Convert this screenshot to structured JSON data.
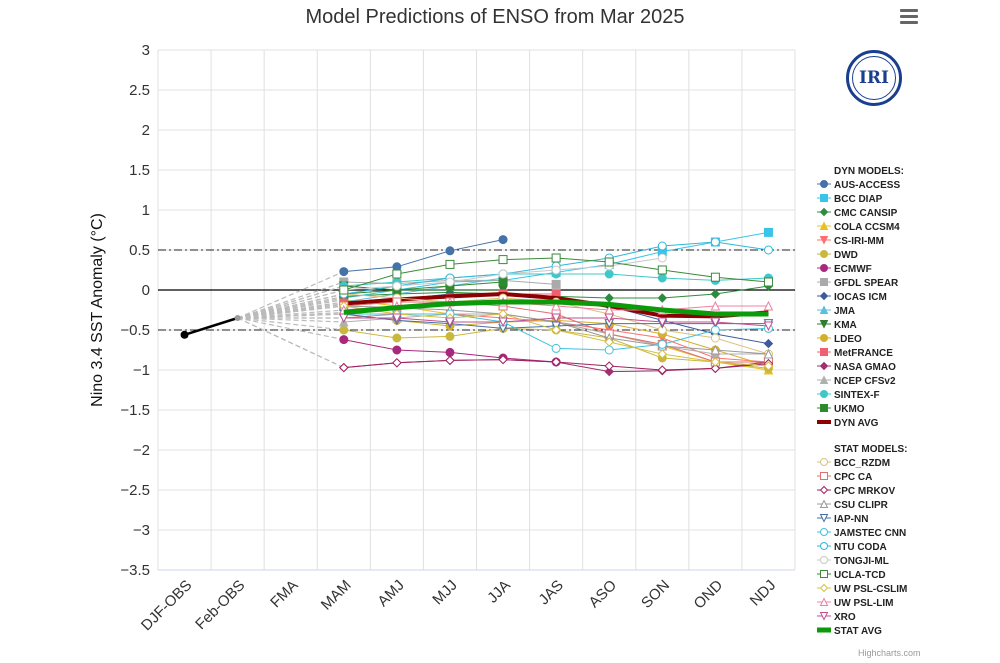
{
  "chart_data": {
    "type": "line",
    "title": "Model Predictions of ENSO from Mar 2025",
    "ylabel": "Nino 3.4 SST Anomaly (°C)",
    "xlabel": "",
    "ylim": [
      -3.5,
      3
    ],
    "yticks": [
      3,
      2.5,
      2,
      1.5,
      1,
      0.5,
      0,
      -0.5,
      -1,
      -1.5,
      -2,
      -2.5,
      -3,
      -3.5
    ],
    "ytick_labels": [
      "3",
      "2.5",
      "2",
      "1.5",
      "1",
      "0.5",
      "0",
      "−0.5",
      "−1",
      "−1.5",
      "−2",
      "−2.5",
      "−3",
      "−3.5"
    ],
    "categories": [
      "DJF-OBS",
      "Feb-OBS",
      "FMA",
      "MAM",
      "AMJ",
      "MJJ",
      "JJA",
      "JAS",
      "ASO",
      "SON",
      "OND",
      "NDJ"
    ],
    "observed": [
      -0.56,
      -0.35
    ],
    "reference_lines": [
      0.5,
      -0.5
    ],
    "legend_headers": [
      "DYN MODELS:",
      "STAT MODELS:"
    ],
    "series": [
      {
        "name": "AUS-ACCESS",
        "group": "dyn",
        "color": "#4572a7",
        "marker": "circle",
        "fill": true,
        "values": [
          null,
          null,
          null,
          0.23,
          0.29,
          0.49,
          0.63,
          null,
          null,
          null,
          null,
          null
        ]
      },
      {
        "name": "BCC DIAP",
        "group": "dyn",
        "color": "#39c4e8",
        "marker": "square",
        "fill": true,
        "values": [
          null,
          null,
          null,
          -0.1,
          0.0,
          0.1,
          0.12,
          0.22,
          0.32,
          0.48,
          0.6,
          0.72
        ]
      },
      {
        "name": "CMC CANSIP",
        "group": "dyn",
        "color": "#2e8b3d",
        "marker": "diamond",
        "fill": true,
        "values": [
          null,
          null,
          null,
          -0.08,
          -0.05,
          -0.03,
          -0.05,
          -0.08,
          -0.1,
          -0.1,
          -0.05,
          0.05
        ]
      },
      {
        "name": "COLA CCSM4",
        "group": "dyn",
        "color": "#e8c020",
        "marker": "triangle",
        "fill": true,
        "values": [
          null,
          null,
          null,
          -0.12,
          -0.2,
          -0.3,
          -0.3,
          -0.4,
          -0.55,
          -0.7,
          -0.9,
          -1.0
        ]
      },
      {
        "name": "CS-IRI-MM",
        "group": "dyn",
        "color": "#ff6f6f",
        "marker": "triangle-down",
        "fill": true,
        "values": [
          null,
          null,
          null,
          -0.35,
          -0.3,
          -0.3,
          -0.35,
          -0.4,
          -0.5,
          -0.6,
          -0.85,
          -0.9
        ]
      },
      {
        "name": "DWD",
        "group": "dyn",
        "color": "#c9b83e",
        "marker": "circle",
        "fill": true,
        "values": [
          null,
          null,
          null,
          -0.5,
          -0.6,
          -0.58,
          -0.48,
          -0.5,
          -0.6,
          -0.85,
          -0.9,
          -0.98
        ]
      },
      {
        "name": "ECMWF",
        "group": "dyn",
        "color": "#a8287c",
        "marker": "circle",
        "fill": true,
        "values": [
          null,
          null,
          null,
          -0.62,
          -0.75,
          -0.78,
          -0.85,
          -0.9,
          null,
          null,
          null,
          null
        ]
      },
      {
        "name": "GFDL SPEAR",
        "group": "dyn",
        "color": "#aaaaaa",
        "marker": "square",
        "fill": true,
        "values": [
          null,
          null,
          null,
          0.1,
          0.08,
          0.12,
          0.12,
          0.07,
          null,
          null,
          null,
          null
        ]
      },
      {
        "name": "IOCAS ICM",
        "group": "dyn",
        "color": "#3c5c9e",
        "marker": "diamond",
        "fill": true,
        "values": [
          null,
          null,
          null,
          -0.18,
          -0.12,
          -0.05,
          -0.05,
          -0.1,
          -0.2,
          -0.38,
          -0.55,
          -0.67
        ]
      },
      {
        "name": "JMA",
        "group": "dyn",
        "color": "#5bc0de",
        "marker": "triangle",
        "fill": true,
        "values": [
          null,
          null,
          null,
          -0.15,
          -0.05,
          0.05,
          0.15,
          null,
          null,
          null,
          null,
          null
        ]
      },
      {
        "name": "KMA",
        "group": "dyn",
        "color": "#2e7d32",
        "marker": "triangle-down",
        "fill": true,
        "values": [
          null,
          null,
          null,
          0.05,
          0.0,
          0.0,
          0.0,
          null,
          null,
          null,
          null,
          null
        ]
      },
      {
        "name": "LDEO",
        "group": "dyn",
        "color": "#d4b02c",
        "marker": "circle",
        "fill": true,
        "values": [
          null,
          null,
          null,
          -0.3,
          -0.38,
          -0.45,
          -0.4,
          -0.38,
          -0.42,
          -0.55,
          -0.75,
          -0.95
        ]
      },
      {
        "name": "MetFRANCE",
        "group": "dyn",
        "color": "#f06070",
        "marker": "square",
        "fill": true,
        "values": [
          null,
          null,
          null,
          -0.15,
          -0.12,
          -0.1,
          -0.05,
          -0.05,
          null,
          null,
          null,
          null
        ]
      },
      {
        "name": "NASA GMAO",
        "group": "dyn",
        "color": "#a03070",
        "marker": "diamond",
        "fill": true,
        "values": [
          null,
          null,
          null,
          -0.97,
          -0.91,
          -0.88,
          -0.87,
          -0.9,
          -1.02,
          -1.01,
          -0.98,
          -0.9
        ]
      },
      {
        "name": "NCEP CFSv2",
        "group": "dyn",
        "color": "#b0b0b0",
        "marker": "triangle",
        "fill": true,
        "values": [
          null,
          null,
          null,
          -0.4,
          -0.35,
          -0.3,
          -0.3,
          -0.4,
          -0.55,
          -0.7,
          -0.8,
          -0.8
        ]
      },
      {
        "name": "SINTEX-F",
        "group": "dyn",
        "color": "#40c8c8",
        "marker": "circle",
        "fill": true,
        "values": [
          null,
          null,
          null,
          0.05,
          0.1,
          0.15,
          0.2,
          0.2,
          0.2,
          0.15,
          0.12,
          0.15
        ]
      },
      {
        "name": "UKMO",
        "group": "dyn",
        "color": "#2f8a2f",
        "marker": "square",
        "fill": true,
        "values": [
          null,
          null,
          null,
          -0.05,
          0.0,
          0.05,
          0.1,
          null,
          null,
          null,
          null,
          null
        ]
      },
      {
        "name": "DYN AVG",
        "group": "dyn",
        "color": "#8b0000",
        "marker": "none",
        "width": 4,
        "values": [
          null,
          null,
          null,
          -0.17,
          -0.12,
          -0.08,
          -0.05,
          -0.1,
          -0.2,
          -0.32,
          -0.33,
          -0.28
        ]
      },
      {
        "name": "BCC_RZDM",
        "group": "stat",
        "color": "#d9c27a",
        "marker": "circle",
        "fill": false,
        "values": [
          null,
          null,
          null,
          -0.05,
          -0.1,
          -0.15,
          -0.1,
          -0.15,
          -0.3,
          -0.5,
          -0.6,
          -0.8
        ]
      },
      {
        "name": "CPC CA",
        "group": "stat",
        "color": "#e07070",
        "marker": "square",
        "fill": false,
        "values": [
          null,
          null,
          null,
          -0.2,
          -0.15,
          -0.15,
          -0.2,
          -0.3,
          -0.55,
          -0.68,
          -0.9,
          -0.9
        ]
      },
      {
        "name": "CPC MRKOV",
        "group": "stat",
        "color": "#a02060",
        "marker": "diamond",
        "fill": false,
        "values": [
          null,
          null,
          null,
          -0.97,
          -0.91,
          -0.88,
          -0.87,
          -0.9,
          -0.95,
          -1.0,
          -0.98,
          -0.92
        ]
      },
      {
        "name": "CSU CLIPR",
        "group": "stat",
        "color": "#999999",
        "marker": "triangle",
        "fill": false,
        "values": [
          null,
          null,
          null,
          -0.2,
          -0.22,
          -0.25,
          -0.3,
          -0.4,
          -0.6,
          -0.7,
          -0.75,
          -0.8
        ]
      },
      {
        "name": "IAP-NN",
        "group": "stat",
        "color": "#4a6fa5",
        "marker": "triangle-down",
        "fill": false,
        "values": [
          null,
          null,
          null,
          -0.3,
          -0.38,
          -0.42,
          -0.48,
          -0.45,
          -0.42,
          -0.42,
          -0.42,
          -0.42
        ]
      },
      {
        "name": "JAMSTEC CNN",
        "group": "stat",
        "color": "#40c0e0",
        "marker": "circle",
        "fill": false,
        "values": [
          null,
          null,
          null,
          -0.3,
          -0.3,
          -0.3,
          -0.4,
          -0.73,
          -0.75,
          -0.68,
          -0.5,
          -0.48
        ]
      },
      {
        "name": "NTU CODA",
        "group": "stat",
        "color": "#30b8d8",
        "marker": "circle",
        "fill": false,
        "values": [
          null,
          null,
          null,
          -0.05,
          0.05,
          0.15,
          0.2,
          0.3,
          0.4,
          0.55,
          0.6,
          0.5
        ]
      },
      {
        "name": "TONGJI-ML",
        "group": "stat",
        "color": "#c8c8c8",
        "marker": "circle",
        "fill": false,
        "values": [
          null,
          null,
          null,
          0.0,
          0.05,
          0.1,
          0.2,
          0.25,
          0.3,
          0.4,
          null,
          null
        ]
      },
      {
        "name": "UCLA-TCD",
        "group": "stat",
        "color": "#3a8a3a",
        "marker": "square",
        "fill": false,
        "values": [
          null,
          null,
          null,
          0.0,
          0.2,
          0.32,
          0.38,
          0.4,
          0.35,
          0.25,
          0.16,
          0.1
        ]
      },
      {
        "name": "UW PSL-CSLIM",
        "group": "stat",
        "color": "#d4c040",
        "marker": "diamond",
        "fill": false,
        "values": [
          null,
          null,
          null,
          -0.2,
          -0.3,
          -0.35,
          -0.3,
          -0.5,
          -0.65,
          -0.8,
          -0.9,
          -0.95
        ]
      },
      {
        "name": "UW PSL-LIM",
        "group": "stat",
        "color": "#f080a0",
        "marker": "triangle",
        "fill": false,
        "values": [
          null,
          null,
          null,
          -0.25,
          -0.2,
          -0.15,
          -0.15,
          -0.2,
          -0.25,
          -0.25,
          -0.2,
          -0.2
        ]
      },
      {
        "name": "XRO",
        "group": "stat",
        "color": "#c05090",
        "marker": "triangle-down",
        "fill": false,
        "values": [
          null,
          null,
          null,
          -0.35,
          -0.35,
          -0.4,
          -0.4,
          -0.35,
          -0.35,
          -0.4,
          -0.4,
          -0.45
        ]
      },
      {
        "name": "STAT AVG",
        "group": "stat",
        "color": "#0a9a0a",
        "marker": "none",
        "width": 5,
        "values": [
          null,
          null,
          null,
          -0.28,
          -0.22,
          -0.17,
          -0.15,
          -0.15,
          -0.18,
          -0.25,
          -0.3,
          -0.3
        ]
      }
    ]
  },
  "logo": {
    "text": "IRI"
  },
  "credits": "Highcharts.com",
  "menu": {
    "icon": "hamburger-menu-icon"
  }
}
